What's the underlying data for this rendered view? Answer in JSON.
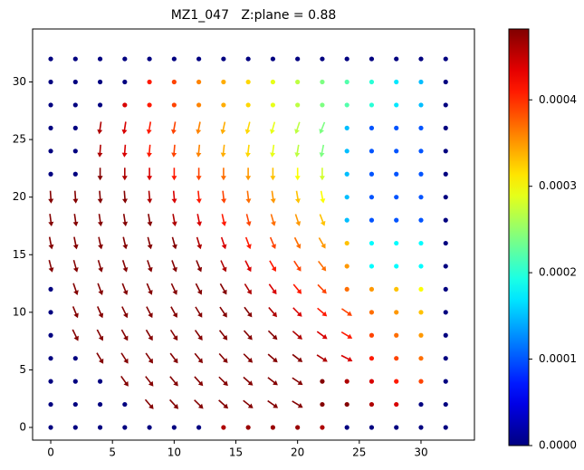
{
  "chart_data": {
    "type": "quiver",
    "title": "MZ1_047   Z:plane = 0.88",
    "colormap": "jet",
    "x": [
      0,
      2,
      4,
      6,
      8,
      10,
      12,
      14,
      16,
      18,
      20,
      22,
      24,
      26,
      28,
      30,
      32
    ],
    "y": [
      0,
      2,
      4,
      6,
      8,
      10,
      12,
      14,
      16,
      18,
      20,
      22,
      24,
      26,
      28,
      30,
      32
    ],
    "xlim": [
      -1.47,
      34.33
    ],
    "ylim": [
      -1.1,
      34.6
    ],
    "xticks": [
      0,
      5,
      10,
      15,
      20,
      25,
      30
    ],
    "yticks": [
      0,
      5,
      10,
      15,
      20,
      25,
      30
    ],
    "clim": [
      0,
      0.000482
    ],
    "cticks": [
      {
        "value": 0,
        "label": "0.0000"
      },
      {
        "value": 0.0001,
        "label": "0.0001"
      },
      {
        "value": 0.0002,
        "label": "0.0002"
      },
      {
        "value": 0.0003,
        "label": "0.0003"
      },
      {
        "value": 0.0004,
        "label": "0.0004"
      }
    ],
    "magnitude": [
      [
        0,
        0,
        0,
        0,
        0,
        0,
        0,
        0.00046,
        0.00047,
        0.00047,
        0.00047,
        0.00046,
        0,
        0,
        0,
        0,
        0
      ],
      [
        0,
        0,
        0,
        0,
        0.00048,
        0.00048,
        0.00048,
        0.00048,
        0.00048,
        0.00048,
        0.00048,
        0.00048,
        0.00048,
        0.00046,
        0.00044,
        0,
        0
      ],
      [
        0,
        0,
        0,
        0.00048,
        0.00048,
        0.00048,
        0.00048,
        0.00048,
        0.00048,
        0.00048,
        0.00048,
        0.00048,
        0.00046,
        0.00044,
        0.00041,
        0.00039,
        0
      ],
      [
        0,
        0,
        0.00048,
        0.00048,
        0.00048,
        0.00048,
        0.00048,
        0.00048,
        0.00048,
        0.00048,
        0.00048,
        0.00046,
        0.00044,
        0.00041,
        0.00039,
        0.00037,
        0
      ],
      [
        0,
        0.00048,
        0.00048,
        0.00048,
        0.00048,
        0.00048,
        0.00048,
        0.00048,
        0.00048,
        0.00048,
        0.00046,
        0.00044,
        0.00041,
        0.00039,
        0.00037,
        0.00035,
        0
      ],
      [
        0,
        0.00048,
        0.00048,
        0.00048,
        0.00048,
        0.00048,
        0.00048,
        0.00048,
        0.00048,
        0.00046,
        0.00044,
        0.00041,
        0.00039,
        0.00037,
        0.00035,
        0.00033,
        0
      ],
      [
        0,
        0.00048,
        0.00048,
        0.00048,
        0.00048,
        0.00048,
        0.00048,
        0.00048,
        0.00046,
        0.00044,
        0.00041,
        0.00039,
        0.00037,
        0.00035,
        0.00033,
        0.0003,
        0
      ],
      [
        0.00048,
        0.00048,
        0.00048,
        0.00048,
        0.00048,
        0.00048,
        0.00048,
        0.00046,
        0.00044,
        0.00041,
        0.00039,
        0.00037,
        0.00035,
        0.00018,
        0.00018,
        0.00018,
        0
      ],
      [
        0.00048,
        0.00048,
        0.00048,
        0.00048,
        0.00048,
        0.00048,
        0.00046,
        0.00044,
        0.00041,
        0.00039,
        0.00037,
        0.00035,
        0.00033,
        0.00018,
        0.00018,
        0.00018,
        0
      ],
      [
        0.00048,
        0.00048,
        0.00048,
        0.00048,
        0.00048,
        0.00046,
        0.00044,
        0.00041,
        0.00039,
        0.00037,
        0.00035,
        0.00033,
        0.00015,
        0.0001,
        0.0001,
        0.0001,
        0
      ],
      [
        0.00048,
        0.00048,
        0.00048,
        0.00048,
        0.00046,
        0.00044,
        0.00041,
        0.00039,
        0.00037,
        0.00035,
        0.00033,
        0.0003,
        0.00015,
        0.0001,
        0.0001,
        0.0001,
        0
      ],
      [
        0,
        0,
        0.00048,
        0.00046,
        0.00044,
        0.00041,
        0.00039,
        0.00037,
        0.00035,
        0.00033,
        0.0003,
        0.00028,
        0.00015,
        0.0001,
        0.0001,
        0.0001,
        0
      ],
      [
        0,
        0,
        0.00046,
        0.00044,
        0.00041,
        0.00039,
        0.00036,
        0.00034,
        0.00032,
        0.00029,
        0.00027,
        0.00024,
        0.00015,
        0.0001,
        0.0001,
        0.0001,
        0
      ],
      [
        0,
        0,
        0.00046,
        0.00044,
        0.00041,
        0.00039,
        0.00036,
        0.00034,
        0.00032,
        0.00029,
        0.00027,
        0.00024,
        0.00015,
        0.0001,
        0.0001,
        0.0001,
        0
      ],
      [
        0,
        0,
        0,
        0.00044,
        0.00041,
        0.00039,
        0.00036,
        0.00034,
        0.00032,
        0.00029,
        0.00027,
        0.00024,
        0.00022,
        0.0002,
        0.00017,
        0.00015,
        0
      ],
      [
        0,
        0,
        0,
        0,
        0.00041,
        0.00039,
        0.00036,
        0.00034,
        0.00032,
        0.00029,
        0.00027,
        0.00024,
        0.00022,
        0.0002,
        0.00017,
        0.00015,
        0
      ],
      [
        0,
        0,
        0,
        0,
        0,
        0,
        0,
        0,
        0,
        0,
        0,
        0,
        0,
        0,
        0,
        0,
        0
      ]
    ],
    "u": [
      [
        null,
        null,
        null,
        null,
        null,
        null,
        null,
        null,
        null,
        null,
        null,
        null,
        null,
        null,
        null,
        null,
        null
      ],
      [
        null,
        null,
        null,
        null,
        20,
        20,
        20,
        20,
        20,
        20,
        20,
        null,
        null,
        null,
        null,
        null,
        null
      ],
      [
        null,
        null,
        null,
        18,
        18,
        18,
        18,
        18,
        18,
        18,
        18,
        null,
        null,
        null,
        null,
        null,
        null
      ],
      [
        null,
        null,
        16,
        16,
        16,
        16,
        16,
        16,
        16,
        16,
        16,
        16,
        16,
        null,
        null,
        null,
        null
      ],
      [
        null,
        14,
        14,
        14,
        14,
        14,
        14,
        14,
        14,
        14,
        14,
        14,
        14,
        null,
        null,
        null,
        null
      ],
      [
        null,
        12,
        12,
        12,
        12,
        12,
        12,
        12,
        12,
        12,
        12,
        12,
        12,
        null,
        null,
        null,
        null
      ],
      [
        null,
        10,
        10,
        10,
        10,
        10,
        10,
        10,
        10,
        10,
        10,
        10,
        null,
        null,
        null,
        null,
        null
      ],
      [
        8,
        8,
        8,
        8,
        8,
        8,
        8,
        8,
        8,
        8,
        8,
        8,
        null,
        null,
        null,
        null,
        null
      ],
      [
        6,
        6,
        6,
        6,
        6,
        6,
        6,
        6,
        6,
        6,
        6,
        6,
        null,
        null,
        null,
        null,
        null
      ],
      [
        4,
        4,
        4,
        4,
        4,
        4,
        4,
        4,
        4,
        4,
        4,
        4,
        null,
        null,
        null,
        null,
        null
      ],
      [
        2,
        2,
        2,
        2,
        2,
        2,
        2,
        2,
        2,
        2,
        2,
        2,
        null,
        null,
        null,
        null,
        null
      ],
      [
        null,
        null,
        0,
        0,
        0,
        0,
        0,
        0,
        0,
        0,
        0,
        0,
        null,
        null,
        null,
        null,
        null
      ],
      [
        null,
        null,
        -2,
        -2,
        -2,
        -2,
        -2,
        -2,
        -2,
        -2,
        -2,
        -2,
        null,
        null,
        null,
        null,
        null
      ],
      [
        null,
        null,
        -4,
        -4,
        -4,
        -4,
        -4,
        -4,
        -4,
        -4,
        -4,
        -4,
        null,
        null,
        null,
        null,
        null
      ],
      [
        null,
        null,
        null,
        null,
        null,
        null,
        null,
        null,
        null,
        null,
        null,
        null,
        null,
        null,
        null,
        null,
        null
      ],
      [
        null,
        null,
        null,
        null,
        null,
        null,
        null,
        null,
        null,
        null,
        null,
        null,
        null,
        null,
        null,
        null,
        null
      ],
      [
        null,
        null,
        null,
        null,
        null,
        null,
        null,
        null,
        null,
        null,
        null,
        null,
        null,
        null,
        null,
        null,
        null
      ]
    ],
    "v": [
      [
        null,
        null,
        null,
        null,
        null,
        null,
        null,
        null,
        null,
        null,
        null,
        null,
        null,
        null,
        null,
        null,
        null
      ],
      [
        null,
        null,
        null,
        null,
        -25,
        -23,
        -21,
        -19,
        -17,
        -15,
        -13,
        null,
        null,
        null,
        null,
        null,
        null
      ],
      [
        null,
        null,
        null,
        -27,
        -25,
        -23,
        -21,
        -19,
        -17,
        -15,
        -13,
        null,
        null,
        null,
        null,
        null,
        null
      ],
      [
        null,
        null,
        -29,
        -27,
        -25,
        -23,
        -21,
        -19,
        -17,
        -15,
        -13,
        -11,
        -9,
        null,
        null,
        null,
        null
      ],
      [
        null,
        -31,
        -29,
        -27,
        -25,
        -23,
        -21,
        -19,
        -17,
        -15,
        -13,
        -11,
        -9,
        null,
        null,
        null,
        null
      ],
      [
        null,
        -31,
        -29,
        -27,
        -25,
        -23,
        -21,
        -19,
        -17,
        -15,
        -13,
        -11,
        -9,
        null,
        null,
        null,
        null
      ],
      [
        null,
        -31,
        -29,
        -27,
        -25,
        -23,
        -21,
        -19,
        -17,
        -15,
        -13,
        -11,
        null,
        null,
        null,
        null,
        null
      ],
      [
        -33,
        -31,
        -29,
        -27,
        -25,
        -23,
        -21,
        -19,
        -17,
        -15,
        -13,
        -11,
        null,
        null,
        null,
        null,
        null
      ],
      [
        -33,
        -31,
        -29,
        -27,
        -25,
        -23,
        -21,
        -19,
        -17,
        -15,
        -13,
        -11,
        null,
        null,
        null,
        null,
        null
      ],
      [
        -33,
        -31,
        -29,
        -27,
        -25,
        -23,
        -21,
        -19,
        -17,
        -15,
        -13,
        -11,
        null,
        null,
        null,
        null,
        null
      ],
      [
        -33,
        -31,
        -29,
        -27,
        -25,
        -23,
        -21,
        -19,
        -17,
        -15,
        -13,
        -11,
        null,
        null,
        null,
        null,
        null
      ],
      [
        null,
        null,
        -29,
        -27,
        -25,
        -23,
        -21,
        -19,
        -17,
        -15,
        -13,
        -11,
        null,
        null,
        null,
        null,
        null
      ],
      [
        null,
        null,
        -29,
        -27,
        -25,
        -23,
        -21,
        -19,
        -17,
        -15,
        -13,
        -11,
        null,
        null,
        null,
        null,
        null
      ],
      [
        null,
        null,
        -29,
        -27,
        -25,
        -23,
        -21,
        -19,
        -17,
        -15,
        -13,
        -11,
        null,
        null,
        null,
        null,
        null
      ],
      [
        null,
        null,
        null,
        null,
        null,
        null,
        null,
        null,
        null,
        null,
        null,
        null,
        null,
        null,
        null,
        null,
        null
      ],
      [
        null,
        null,
        null,
        null,
        null,
        null,
        null,
        null,
        null,
        null,
        null,
        null,
        null,
        null,
        null,
        null,
        null
      ],
      [
        null,
        null,
        null,
        null,
        null,
        null,
        null,
        null,
        null,
        null,
        null,
        null,
        null,
        null,
        null,
        null,
        null
      ]
    ]
  }
}
